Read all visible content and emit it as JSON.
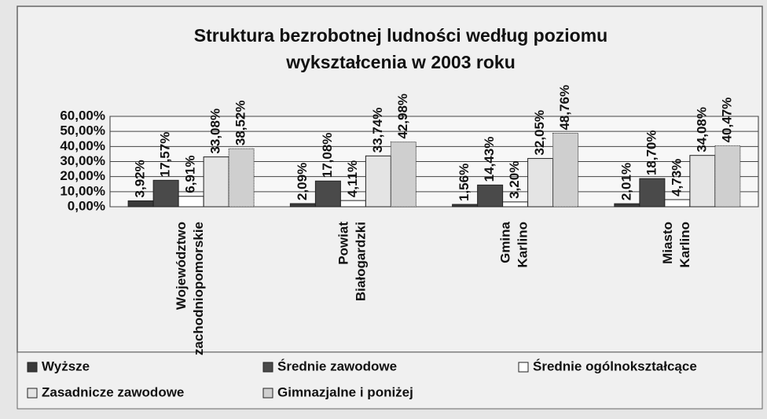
{
  "chart_data": {
    "type": "bar",
    "title": "Struktura bezrobotnej ludności według poziomu wykształcenia w 2003 roku",
    "categories": [
      "Województwo zachodniopomorskie",
      "Powiat Białogardzki",
      "Gmina Karlino",
      "Miasto Karlino"
    ],
    "series": [
      {
        "name": "Wyższe",
        "color": "#3a3a3a",
        "values": [
          3.92,
          2.09,
          1.56,
          2.01
        ],
        "value_labels": [
          "3,92%",
          "2,09%",
          "1,56%",
          "2,01%"
        ]
      },
      {
        "name": "Średnie zawodowe",
        "color": "#4a4a4a",
        "values": [
          17.57,
          17.08,
          14.43,
          18.7
        ],
        "value_labels": [
          "17,57%",
          "17,08%",
          "14,43%",
          "18,70%"
        ]
      },
      {
        "name": "Średnie ogólnokształcące",
        "color": "#ffffff",
        "values": [
          6.91,
          4.11,
          3.2,
          4.73
        ],
        "value_labels": [
          "6,91%",
          "4,11%",
          "3,20%",
          "4,73%"
        ]
      },
      {
        "name": "Zasadnicze zawodowe",
        "color": "#e4e4e4",
        "values": [
          33.08,
          33.74,
          32.05,
          34.08
        ],
        "value_labels": [
          "33,08%",
          "33,74%",
          "32,05%",
          "34,08%"
        ]
      },
      {
        "name": "Gimnazjalne i poniżej",
        "color": "#cfcfcf",
        "values": [
          38.52,
          42.98,
          48.76,
          40.47
        ],
        "value_labels": [
          "38,52%",
          "42,98%",
          "48,76%",
          "40,47%"
        ]
      }
    ],
    "ylim": [
      0,
      60
    ],
    "yticks": [
      {
        "value": 0,
        "label": "0,00%"
      },
      {
        "value": 10,
        "label": "10,00%"
      },
      {
        "value": 20,
        "label": "20,00%"
      },
      {
        "value": 30,
        "label": "30,00%"
      },
      {
        "value": 40,
        "label": "40,00%"
      },
      {
        "value": 50,
        "label": "50,00%"
      },
      {
        "value": 60,
        "label": "60,00%"
      }
    ],
    "grid": true,
    "legend": "bottom"
  }
}
